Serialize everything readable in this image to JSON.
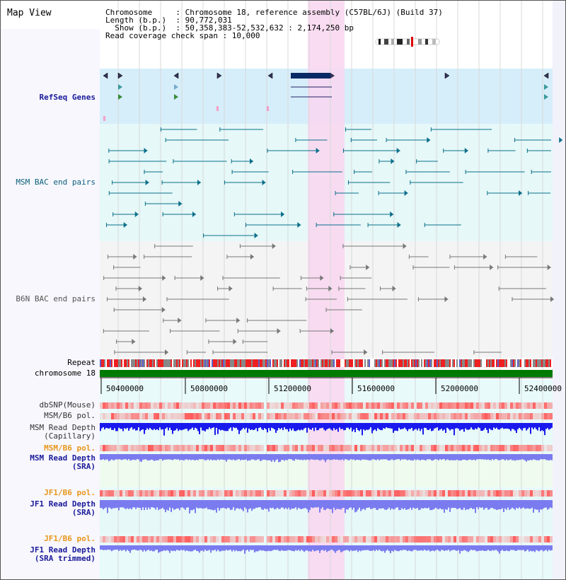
{
  "title": "Map View",
  "info": {
    "line1": "Chromosome     : Chromosome 18, reference assembly (C57BL/6J) (Build 37)",
    "line2": "Length (b.p.)  : 90,772,031",
    "line3": "  Show (b.p.)  : 50,358,383-52,532,632 : 2,174,250 bp",
    "line4": "Read coverage check span : 10,000"
  },
  "tracks": {
    "refseq": "RefSeq Genes",
    "msm_bac": "MSM BAC end pairs",
    "b6n_bac": "B6N BAC end pairs",
    "repeat": "Repeat",
    "chrom": "chromosome 18",
    "dbsnp": "dbSNP(Mouse)",
    "msm_b6_pol": "MSM/B6 pol.",
    "msm_depth_cap_1": "MSM Read Depth",
    "msm_depth_cap_2": "(Capillary)",
    "msm_b6_pol2": "MSM/B6 pol.",
    "msm_depth_sra_1": "MSM Read Depth",
    "msm_depth_sra_2": "(SRA)",
    "jf1_b6_pol": "JF1/B6 pol.",
    "jf1_depth_sra_1": "JF1 Read Depth",
    "jf1_depth_sra_2": "(SRA)",
    "jf1_b6_pol2": "JF1/B6 pol.",
    "jf1_depth_trim_1": "JF1 Read Depth",
    "jf1_depth_trim_2": "(SRA trimmed)"
  },
  "axis": {
    "ticks": [
      "50400000",
      "50800000",
      "51200000",
      "51600000",
      "52000000",
      "52400000"
    ]
  },
  "colors": {
    "highlight": "#f9d6f0",
    "refseq_bg": "#d6eefa",
    "msm_bg": "#e6f8f8",
    "b6n_bg": "#f4f4f4",
    "chrom": "#007a00",
    "depth_dark": "#1a1aee",
    "depth_light": "#7b7bf0",
    "pol_red": "#ee3030",
    "msm_feature": "#0b6f8a",
    "b6n_feature": "#777777"
  }
}
